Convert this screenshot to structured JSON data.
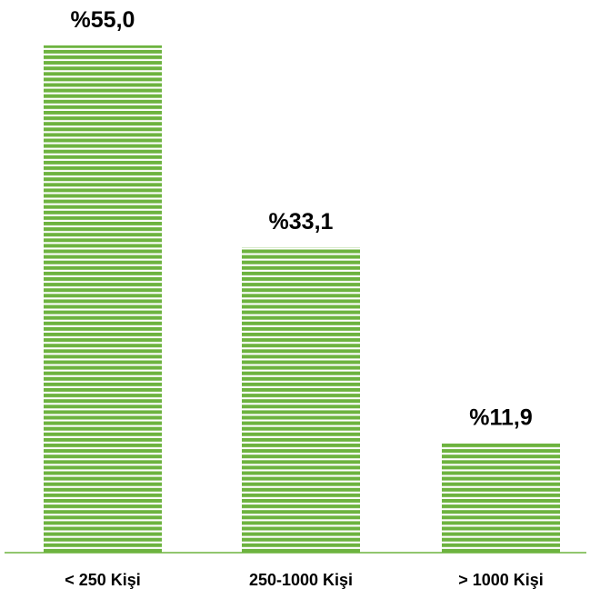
{
  "chart_data": {
    "type": "bar",
    "categories": [
      "< 250 Kişi",
      "250-1000 Kişi",
      "> 1000 Kişi"
    ],
    "values": [
      55.0,
      33.1,
      11.9
    ],
    "value_labels": [
      "%55,0",
      "%33,1",
      "%11,9"
    ],
    "title": "",
    "xlabel": "",
    "ylabel": "",
    "ylim": [
      0,
      55.0
    ],
    "grid": false,
    "legend": "none",
    "colors": {
      "bar": "#6db33f",
      "stripe": "#ffffff",
      "axis": "#6db33f",
      "text": "#000000"
    }
  }
}
